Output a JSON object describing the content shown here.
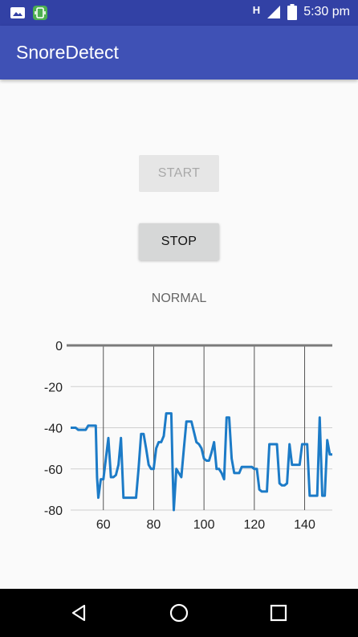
{
  "status_bar": {
    "time": "5:30 pm",
    "network": "H",
    "icons": [
      "image-icon",
      "app-icon",
      "network-h-icon",
      "signal-icon",
      "battery-icon"
    ]
  },
  "app_bar": {
    "title": "SnoreDetect"
  },
  "buttons": {
    "start_label": "START",
    "stop_label": "STOP"
  },
  "state_text": "NORMAL",
  "colors": {
    "primary": "#3f51b5",
    "primary_dark": "#3241a5",
    "series": "#1c7bc7"
  },
  "chart_data": {
    "type": "line",
    "grid": true,
    "xlim": [
      47,
      151
    ],
    "ylim": [
      -80,
      0
    ],
    "x_ticks": [
      60,
      80,
      100,
      120,
      140
    ],
    "y_ticks": [
      0,
      -20,
      -40,
      -60,
      -80
    ],
    "series": [
      {
        "points": [
          [
            47,
            -40
          ],
          [
            49,
            -40
          ],
          [
            50,
            -41
          ],
          [
            52,
            -41
          ],
          [
            53,
            -41
          ],
          [
            54,
            -39
          ],
          [
            55,
            -39
          ],
          [
            56,
            -39
          ],
          [
            57,
            -39
          ],
          [
            57.5,
            -64
          ],
          [
            58,
            -74
          ],
          [
            59,
            -65
          ],
          [
            60,
            -65
          ],
          [
            61,
            -55
          ],
          [
            62,
            -45
          ],
          [
            63,
            -64
          ],
          [
            64,
            -64
          ],
          [
            65,
            -63
          ],
          [
            66,
            -58
          ],
          [
            67,
            -45
          ],
          [
            68,
            -74
          ],
          [
            69,
            -74
          ],
          [
            71,
            -74
          ],
          [
            72,
            -74
          ],
          [
            73,
            -74
          ],
          [
            74,
            -60
          ],
          [
            75,
            -43
          ],
          [
            76,
            -43
          ],
          [
            77,
            -50
          ],
          [
            78,
            -58
          ],
          [
            79,
            -60
          ],
          [
            80,
            -60
          ],
          [
            81,
            -50
          ],
          [
            82,
            -47
          ],
          [
            83,
            -47
          ],
          [
            84,
            -44
          ],
          [
            85,
            -33
          ],
          [
            86,
            -33
          ],
          [
            87,
            -33
          ],
          [
            87.5,
            -60
          ],
          [
            88,
            -80
          ],
          [
            89,
            -60
          ],
          [
            90,
            -62
          ],
          [
            91,
            -64
          ],
          [
            92,
            -50
          ],
          [
            93,
            -37
          ],
          [
            94,
            -37
          ],
          [
            95,
            -37
          ],
          [
            96,
            -42
          ],
          [
            97,
            -47
          ],
          [
            98,
            -48
          ],
          [
            99,
            -50
          ],
          [
            100,
            -55
          ],
          [
            101,
            -56
          ],
          [
            102,
            -56
          ],
          [
            103,
            -52
          ],
          [
            104,
            -47
          ],
          [
            105,
            -60
          ],
          [
            106,
            -60
          ],
          [
            107,
            -62
          ],
          [
            108,
            -65
          ],
          [
            109,
            -35
          ],
          [
            110,
            -35
          ],
          [
            111,
            -55
          ],
          [
            112,
            -62
          ],
          [
            113,
            -62
          ],
          [
            114,
            -62
          ],
          [
            115,
            -59
          ],
          [
            116,
            -59
          ],
          [
            117,
            -59
          ],
          [
            118,
            -59
          ],
          [
            119,
            -59
          ],
          [
            120,
            -60
          ],
          [
            121,
            -60
          ],
          [
            122,
            -70
          ],
          [
            123,
            -71
          ],
          [
            124,
            -71
          ],
          [
            125,
            -71
          ],
          [
            126,
            -48
          ],
          [
            127,
            -48
          ],
          [
            128,
            -48
          ],
          [
            129,
            -48
          ],
          [
            130,
            -67
          ],
          [
            131,
            -68
          ],
          [
            132,
            -68
          ],
          [
            133,
            -67
          ],
          [
            134,
            -48
          ],
          [
            135,
            -58
          ],
          [
            136,
            -58
          ],
          [
            137,
            -58
          ],
          [
            138,
            -58
          ],
          [
            139,
            -48
          ],
          [
            140,
            -48
          ],
          [
            141,
            -48
          ],
          [
            142,
            -73
          ],
          [
            143,
            -73
          ],
          [
            144,
            -73
          ],
          [
            145,
            -73
          ],
          [
            146,
            -35
          ],
          [
            147,
            -73
          ],
          [
            148,
            -73
          ],
          [
            149,
            -46
          ],
          [
            150,
            -53
          ],
          [
            151,
            -53
          ]
        ]
      }
    ]
  }
}
